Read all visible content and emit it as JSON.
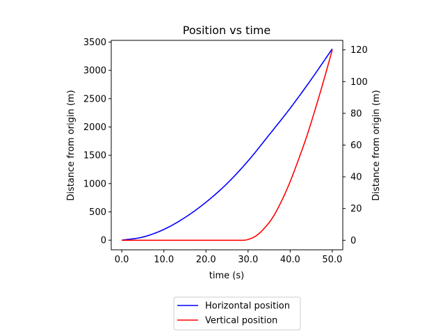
{
  "chart_data": {
    "type": "line",
    "title": "Position vs time",
    "xlabel": "time (s)",
    "ylabel_left": "Distance from origin (m)",
    "ylabel_right": "Distance from origin (m)",
    "xlim": [
      -2.5,
      52.5
    ],
    "ylim_left": [
      -170,
      3530
    ],
    "ylim_right": [
      -6,
      126
    ],
    "x_ticks": [
      0,
      10,
      20,
      30,
      40,
      50
    ],
    "x_tick_labels": [
      "0.0",
      "10.0",
      "20.0",
      "30.0",
      "40.0",
      "50.0"
    ],
    "y_left_ticks": [
      0,
      500,
      1000,
      1500,
      2000,
      2500,
      3000,
      3500
    ],
    "y_left_tick_labels": [
      "0",
      "500",
      "1000",
      "1500",
      "2000",
      "2500",
      "3000",
      "3500"
    ],
    "y_right_ticks": [
      0,
      20,
      40,
      60,
      80,
      100,
      120
    ],
    "y_right_tick_labels": [
      "0",
      "20",
      "40",
      "60",
      "80",
      "100",
      "120"
    ],
    "grid": false,
    "legend_position": "below",
    "series": [
      {
        "name": "Horizontal position",
        "axis": "left",
        "color": "#0000ff",
        "x": [
          0,
          5,
          10,
          15,
          20,
          25,
          30,
          35,
          40,
          45,
          50
        ],
        "y": [
          0,
          55,
          190,
          400,
          670,
          1000,
          1400,
          1860,
          2330,
          2840,
          3380
        ]
      },
      {
        "name": "Vertical position",
        "axis": "right",
        "color": "#ff0000",
        "x": [
          0,
          10,
          20,
          28.5,
          30,
          32,
          34,
          36,
          38,
          40,
          42,
          44,
          46,
          48,
          50
        ],
        "y": [
          0,
          0,
          0,
          0,
          0.5,
          3,
          8,
          15,
          25,
          37,
          51,
          66,
          83,
          101,
          120
        ]
      }
    ]
  }
}
